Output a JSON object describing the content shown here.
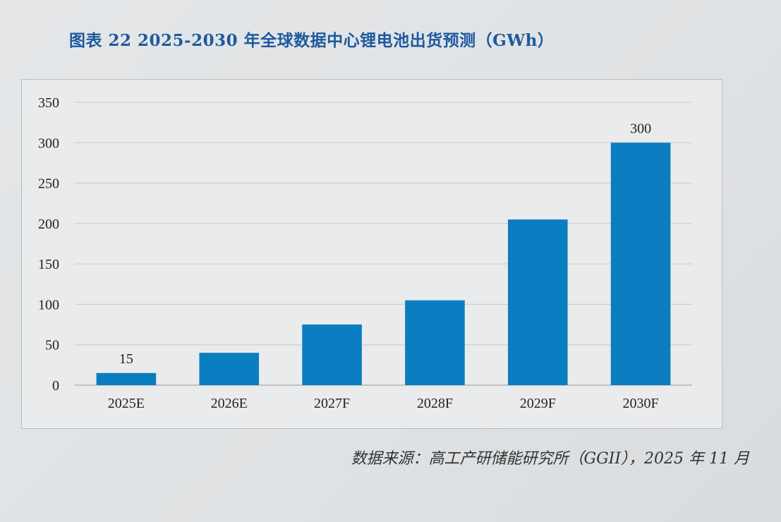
{
  "title": "图表 22    2025-2030 年全球数据中心锂电池出货预测（GWh）",
  "source": "数据来源：高工产研储能研究所（GGII），2025 年 11 月",
  "chart_data": {
    "type": "bar",
    "title": "",
    "xlabel": "",
    "ylabel": "",
    "categories": [
      "2025E",
      "2026E",
      "2027F",
      "2028F",
      "2029F",
      "2030F"
    ],
    "values": [
      15,
      40,
      75,
      105,
      205,
      300
    ],
    "data_labels": {
      "0": "15",
      "5": "300"
    },
    "ylim": [
      0,
      350
    ],
    "yticks": [
      0,
      50,
      100,
      150,
      200,
      250,
      300,
      350
    ],
    "grid": true,
    "legend": "none",
    "bar_color": "#0b7dc1"
  }
}
